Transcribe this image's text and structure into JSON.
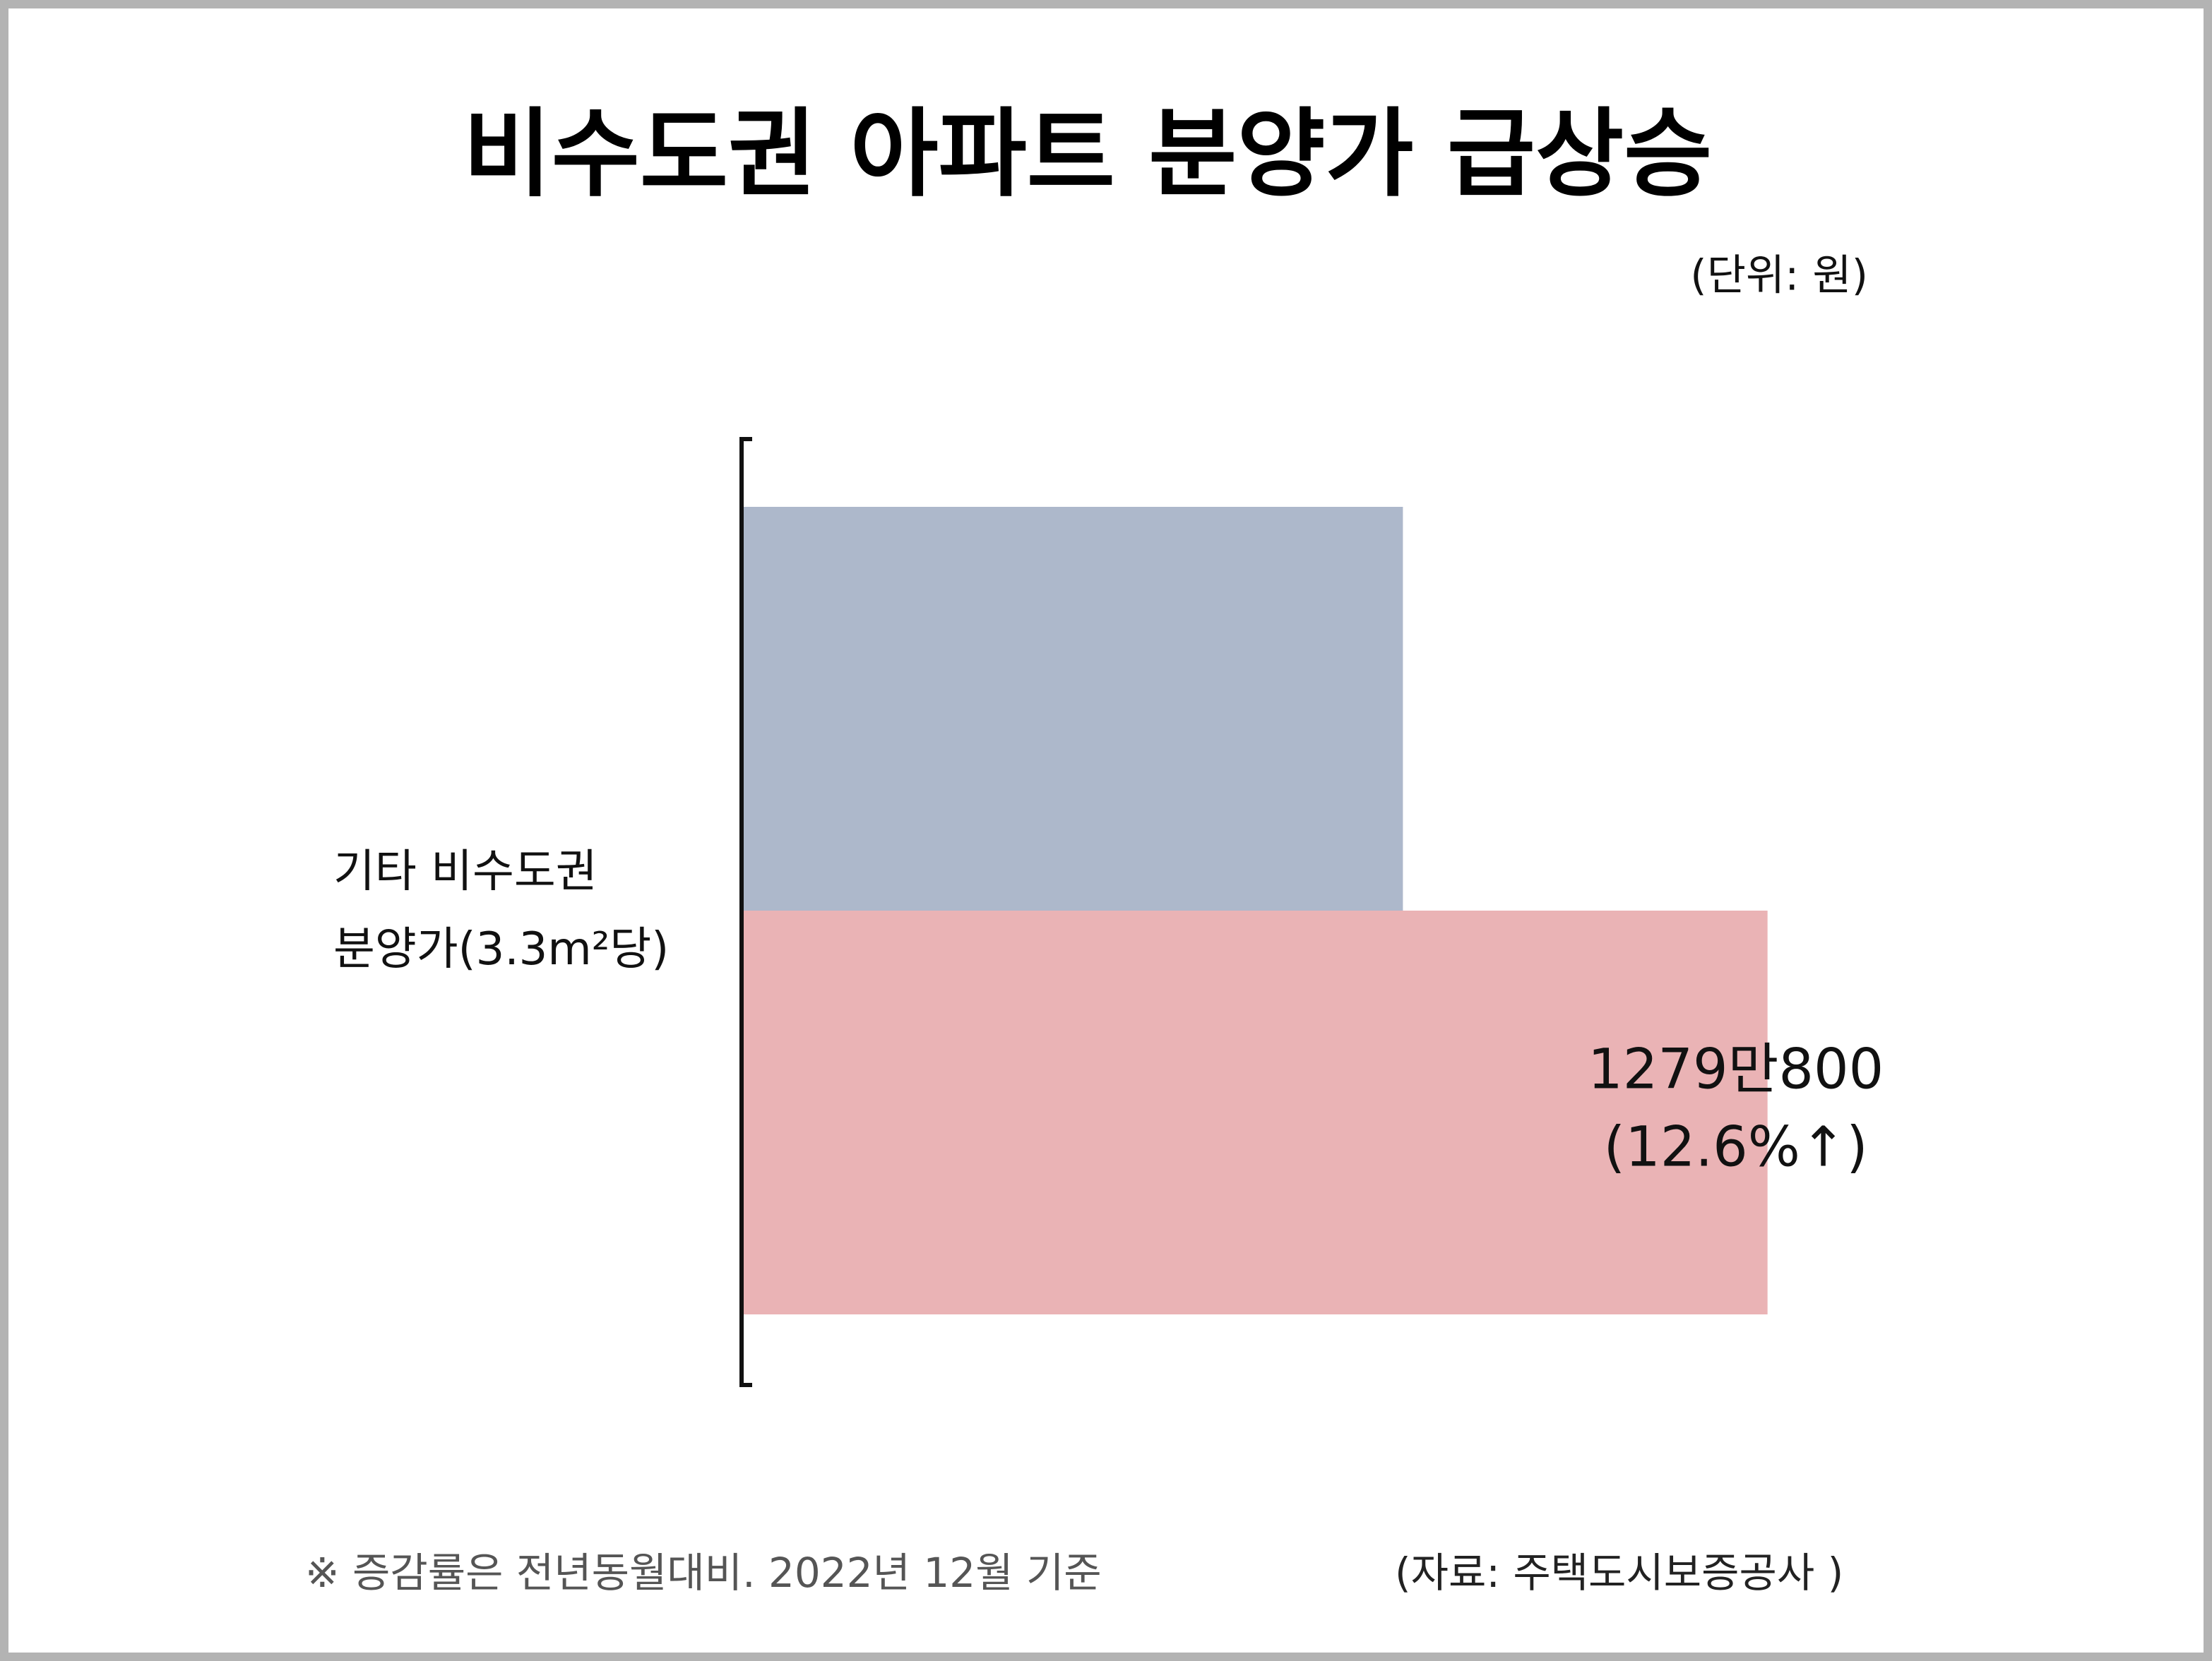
{
  "chart_data": {
    "type": "barh",
    "title": "비수도권 아파트 분양가 급상승",
    "subtitle": "(단위: 원)",
    "categories": [
      "기타 비수도권\n분양가(3.3m²당)"
    ],
    "series": [
      {
        "color": "#adb8cb",
        "values": [
          8245000
        ]
      },
      {
        "color": "#eab3b5",
        "values": [
          12790800
        ],
        "value_labels": [
          "1279만800"
        ]
      }
    ],
    "annotations": [
      "(12.6%↑)"
    ],
    "xlim": [
      0,
      14000000
    ],
    "footnote": "※ 증감률은 전년동월대비. 2022년 12월 기준",
    "source": "(자료: 주택도시보증공사 )"
  }
}
